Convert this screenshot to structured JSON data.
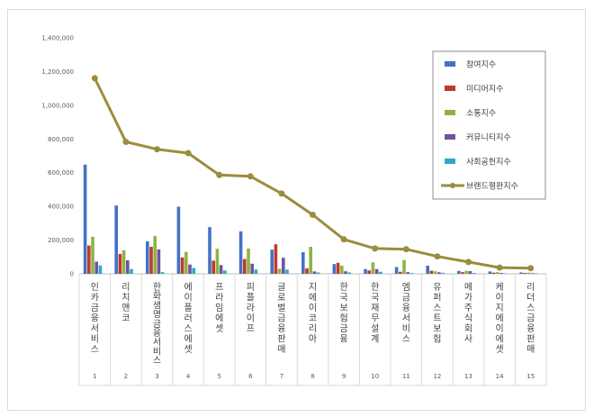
{
  "chart_data": {
    "type": "bar",
    "categories": [
      "인카금융서비스",
      "리치앤코",
      "한화생명금융서비스",
      "에이플러스에셋",
      "프라임에셋",
      "피플라이프",
      "글로벌금융판매",
      "지에이코리아",
      "한국보험금융",
      "한국재무설계",
      "엠금융서비스",
      "유퍼스트보험",
      "메가주식회사",
      "케이지에이에셋",
      "리더스금융판매"
    ],
    "ranks": [
      "1",
      "2",
      "3",
      "4",
      "5",
      "6",
      "7",
      "8",
      "9",
      "10",
      "11",
      "12",
      "13",
      "14",
      "15"
    ],
    "ylim": [
      0,
      1400000
    ],
    "yticks": [
      0,
      200000,
      400000,
      600000,
      800000,
      1000000,
      1200000,
      1400000
    ],
    "ytick_labels": [
      "0",
      "200,000",
      "400,000",
      "600,000",
      "800,000",
      "1,000,000",
      "1,200,000",
      "1,400,000"
    ],
    "grid": false,
    "legend_position": "top-right",
    "series": [
      {
        "name": "참여지수",
        "kind": "bar",
        "color": "#4472C4",
        "values": [
          648000,
          405000,
          192000,
          398000,
          277000,
          252000,
          143000,
          128000,
          58000,
          28000,
          40000,
          48000,
          17000,
          14000,
          8000
        ]
      },
      {
        "name": "미디어지수",
        "kind": "bar",
        "color": "#C0392B",
        "values": [
          168000,
          118000,
          160000,
          97000,
          78000,
          88000,
          175000,
          32000,
          65000,
          20000,
          12000,
          18000,
          10000,
          7000,
          5000
        ]
      },
      {
        "name": "소통지수",
        "kind": "bar",
        "color": "#8DB443",
        "values": [
          220000,
          140000,
          225000,
          130000,
          148000,
          150000,
          30000,
          160000,
          48000,
          68000,
          82000,
          15000,
          18000,
          10000,
          7000
        ]
      },
      {
        "name": "커뮤니티지수",
        "kind": "bar",
        "color": "#7153A0",
        "values": [
          72000,
          80000,
          145000,
          55000,
          52000,
          60000,
          95000,
          14000,
          15000,
          28000,
          10000,
          9000,
          16000,
          5000,
          4000
        ]
      },
      {
        "name": "사회공헌지수",
        "kind": "bar",
        "color": "#2EA9C4",
        "values": [
          50000,
          28000,
          10000,
          35000,
          20000,
          25000,
          25000,
          8000,
          8000,
          12000,
          4000,
          6000,
          5000,
          3000,
          3000
        ]
      },
      {
        "name": "브랜드평판지수",
        "kind": "line",
        "color": "#9C8D3D",
        "values": [
          1160000,
          783000,
          739000,
          716000,
          586000,
          578000,
          476000,
          350000,
          204000,
          150000,
          146000,
          103000,
          70000,
          37000,
          33000
        ]
      }
    ]
  }
}
